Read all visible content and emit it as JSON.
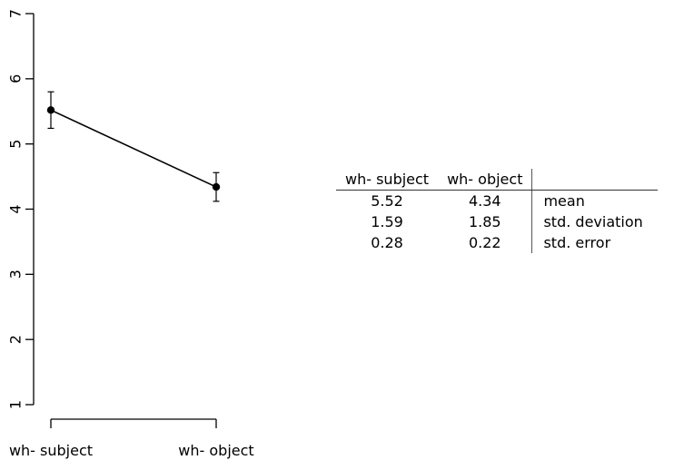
{
  "chart_data": {
    "type": "line",
    "categories": [
      "wh- subject",
      "wh- object"
    ],
    "series": [
      {
        "values": [
          5.52,
          4.34
        ],
        "error": [
          0.28,
          0.22
        ]
      }
    ],
    "ylim": [
      1,
      7
    ],
    "yticks": [
      1,
      2,
      3,
      4,
      5,
      6,
      7
    ],
    "title": "",
    "xlabel": "",
    "ylabel": "",
    "grid": false
  },
  "table": {
    "headers": [
      "wh- subject",
      "wh- object",
      ""
    ],
    "rows": [
      [
        "5.52",
        "4.34",
        "mean"
      ],
      [
        "1.59",
        "1.85",
        "std. deviation"
      ],
      [
        "0.28",
        "0.22",
        "std. error"
      ]
    ]
  }
}
